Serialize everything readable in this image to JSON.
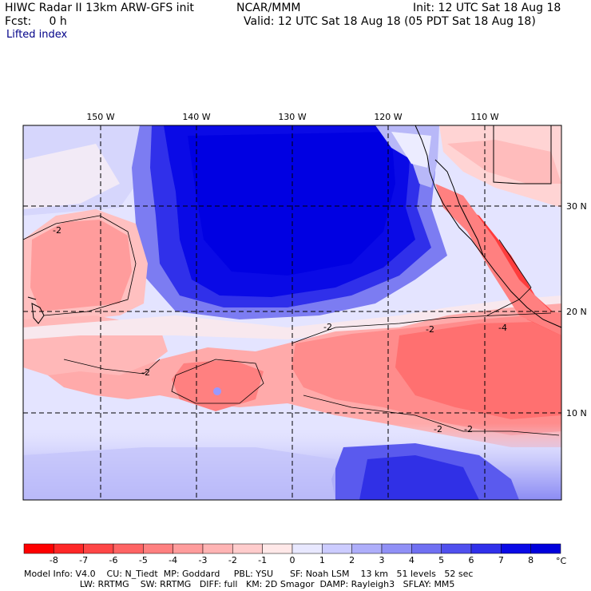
{
  "header": {
    "title": "HIWC Radar II 13km ARW-GFS init",
    "org": "NCAR/MMM",
    "init": "Init: 12 UTC Sat 18 Aug 18",
    "fcst": "Fcst:     0 h",
    "valid": "Valid: 12 UTC Sat 18 Aug 18 (05 PDT Sat 18 Aug 18)",
    "field": "Lifted index"
  },
  "map": {
    "longitude_labels": [
      "150 W",
      "140 W",
      "130 W",
      "120 W",
      "110 W"
    ],
    "latitude_labels": [
      "30 N",
      "20 N",
      "10 N"
    ],
    "contour_labels": [
      "-2",
      "-2",
      "-2",
      "-2",
      "-2",
      "-2",
      "-4"
    ]
  },
  "colorbar": {
    "ticks": [
      "-8",
      "-7",
      "-6",
      "-5",
      "-4",
      "-3",
      "-2",
      "-1",
      "0",
      "1",
      "2",
      "3",
      "4",
      "5",
      "6",
      "7",
      "8"
    ],
    "unit": "°C",
    "colors": [
      "#ff0000",
      "#ff2828",
      "#ff4646",
      "#ff6464",
      "#ff8080",
      "#ff9c9c",
      "#ffb4b4",
      "#ffcccc",
      "#ffe8e8",
      "#e8e8ff",
      "#ccccff",
      "#aeaefa",
      "#9090f6",
      "#7070f2",
      "#5050ee",
      "#3030ea",
      "#0a0ae6",
      "#0000dc"
    ]
  },
  "footer": {
    "line1": "Model Info: V4.0    CU: N_Tiedt  MP: Goddard     PBL: YSU      SF: Noah LSM    13 km   51 levels   52 sec",
    "line2": "                    LW: RRTMG    SW: RRTMG   DIFF: full   KM: 2D Smagor  DAMP: Rayleigh3   SFLAY: MM5"
  }
}
